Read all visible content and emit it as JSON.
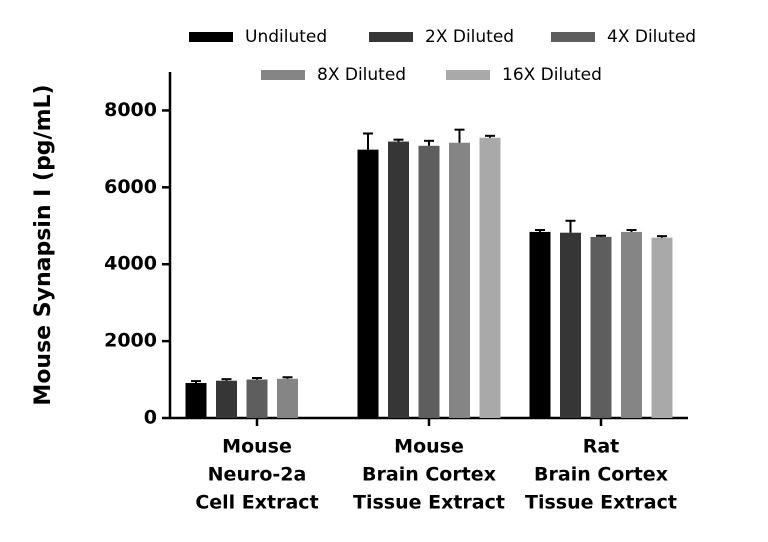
{
  "chart_data": {
    "type": "bar",
    "y_label": "Mouse Synapsin I (pg/mL)",
    "categories": [
      [
        "Mouse",
        "Neuro-2a",
        "Cell Extract"
      ],
      [
        "Mouse",
        "Brain Cortex",
        "Tissue Extract"
      ],
      [
        "Rat",
        "Brain Cortex",
        "Tissue Extract"
      ]
    ],
    "series": [
      {
        "name": "Undiluted",
        "color": "#000000",
        "values": [
          910,
          6980,
          4840
        ],
        "errors": [
          50,
          420,
          50
        ]
      },
      {
        "name": "2X Diluted",
        "color": "#363636",
        "values": [
          970,
          7190,
          4820
        ],
        "errors": [
          40,
          50,
          310
        ]
      },
      {
        "name": "4X Diluted",
        "color": "#5e5e5e",
        "values": [
          1000,
          7080,
          4710
        ],
        "errors": [
          40,
          130,
          30
        ]
      },
      {
        "name": "8X Diluted",
        "color": "#858585",
        "values": [
          1020,
          7160,
          4840
        ],
        "errors": [
          40,
          340,
          50
        ]
      },
      {
        "name": "16X Diluted",
        "color": "#a9a9a9",
        "values": [
          null,
          7290,
          4690
        ],
        "errors": [
          null,
          50,
          40
        ]
      }
    ],
    "ylim": [
      0,
      9000
    ],
    "yticks": [
      0,
      2000,
      4000,
      6000,
      8000
    ]
  }
}
